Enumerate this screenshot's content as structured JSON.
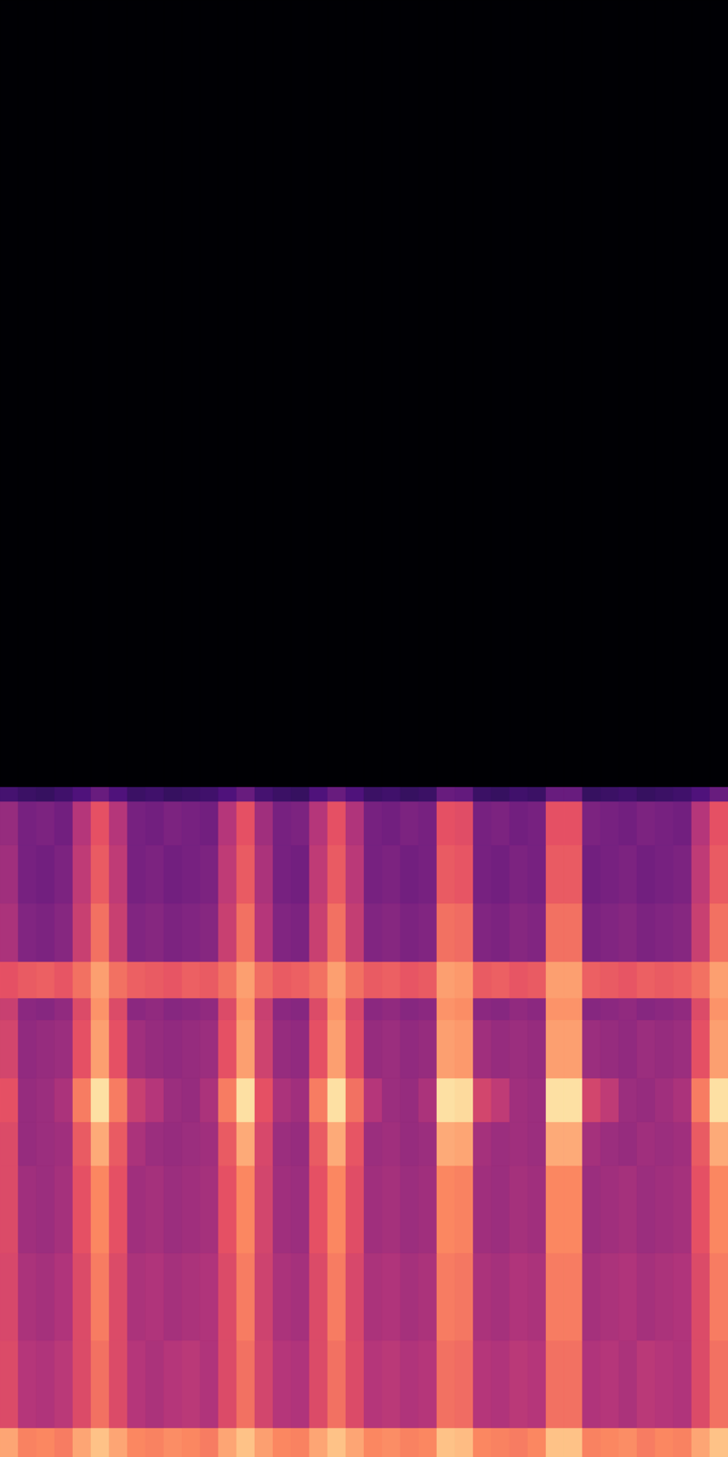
{
  "chart_data": {
    "type": "heatmap",
    "tick_labels": false,
    "xlim": [
      0,
      100
    ],
    "ylim": [
      0,
      100
    ],
    "x_bins": [
      0,
      2.5,
      5,
      7.5,
      10,
      12.5,
      15,
      17.5,
      20,
      22.5,
      25,
      27.5,
      30,
      32.5,
      35,
      37.5,
      40,
      42.5,
      45,
      47.5,
      50,
      52.5,
      55,
      57.5,
      60,
      62.5,
      65,
      67.5,
      70,
      72.5,
      75,
      77.5,
      80,
      82.5,
      85,
      87.5,
      90,
      92.5,
      95,
      97.5,
      100
    ],
    "y_bins": [
      0,
      2,
      8,
      14,
      20,
      23,
      26,
      30,
      31.5,
      34,
      38,
      42,
      45,
      46,
      100
    ],
    "color_range": [
      -80,
      0
    ],
    "cells": [
      [
        -15,
        -21,
        -20,
        -22,
        -15,
        -10,
        -15,
        -20,
        -21,
        -19,
        -20,
        -22,
        -15,
        -10,
        -16,
        -20,
        -21,
        -15,
        -10,
        -15,
        -20,
        -19,
        -21,
        -20,
        -10,
        -11,
        -20,
        -21,
        -22,
        -20,
        -10,
        -10,
        -21,
        -20,
        -19,
        -22,
        -20,
        -21,
        -15,
        -10
      ],
      [
        -32,
        -40,
        -41,
        -39,
        -32,
        -24,
        -32,
        -40,
        -42,
        -40,
        -39,
        -41,
        -32,
        -24,
        -34,
        -40,
        -41,
        -32,
        -24,
        -32,
        -40,
        -39,
        -41,
        -40,
        -24,
        -25,
        -40,
        -41,
        -39,
        -40,
        -24,
        -24,
        -41,
        -40,
        -42,
        -39,
        -40,
        -41,
        -32,
        -24
      ],
      [
        -33,
        -42,
        -43,
        -41,
        -32,
        -22,
        -32,
        -42,
        -41,
        -43,
        -42,
        -41,
        -32,
        -22,
        -35,
        -42,
        -43,
        -32,
        -22,
        -33,
        -42,
        -41,
        -43,
        -42,
        -22,
        -23,
        -42,
        -43,
        -41,
        -42,
        -22,
        -22,
        -43,
        -42,
        -41,
        -43,
        -42,
        -41,
        -32,
        -22
      ],
      [
        -32,
        -44,
        -45,
        -43,
        -30,
        -20,
        -30,
        -44,
        -43,
        -45,
        -44,
        -43,
        -30,
        -20,
        -34,
        -44,
        -45,
        -30,
        -20,
        -31,
        -44,
        -43,
        -45,
        -44,
        -20,
        -21,
        -44,
        -45,
        -43,
        -44,
        -20,
        -20,
        -45,
        -44,
        -43,
        -45,
        -44,
        -43,
        -30,
        -20
      ],
      [
        -32,
        -46,
        -45,
        -44,
        -28,
        -14,
        -28,
        -42,
        -45,
        -46,
        -45,
        -44,
        -28,
        -14,
        -33,
        -45,
        -46,
        -28,
        -14,
        -29,
        -45,
        -44,
        -46,
        -45,
        -14,
        -15,
        -43,
        -45,
        -44,
        -45,
        -14,
        -14,
        -43,
        -45,
        -46,
        -44,
        -45,
        -44,
        -28,
        -14
      ],
      [
        -30,
        -46,
        -45,
        -42,
        -22,
        -5,
        -22,
        -36,
        -40,
        -45,
        -46,
        -42,
        -22,
        -5,
        -30,
        -42,
        -44,
        -22,
        -5,
        -24,
        -40,
        -45,
        -46,
        -42,
        -5,
        -6,
        -34,
        -38,
        -44,
        -45,
        -5,
        -5,
        -34,
        -38,
        -45,
        -46,
        -44,
        -42,
        -22,
        -5
      ],
      [
        -34,
        -47,
        -46,
        -45,
        -30,
        -16,
        -30,
        -44,
        -46,
        -47,
        -46,
        -45,
        -30,
        -16,
        -35,
        -46,
        -47,
        -30,
        -16,
        -31,
        -46,
        -45,
        -47,
        -46,
        -16,
        -17,
        -44,
        -46,
        -45,
        -46,
        -16,
        -16,
        -45,
        -46,
        -47,
        -45,
        -46,
        -45,
        -30,
        -16
      ],
      [
        -36,
        -48,
        -49,
        -47,
        -32,
        -18,
        -32,
        -48,
        -47,
        -49,
        -48,
        -47,
        -32,
        -18,
        -36,
        -48,
        -49,
        -32,
        -18,
        -33,
        -48,
        -47,
        -49,
        -48,
        -18,
        -19,
        -48,
        -49,
        -47,
        -48,
        -18,
        -18,
        -49,
        -48,
        -47,
        -49,
        -48,
        -47,
        -32,
        -18
      ],
      [
        -30,
        -28,
        -27,
        -29,
        -24,
        -16,
        -24,
        -27,
        -28,
        -29,
        -27,
        -28,
        -24,
        -16,
        -25,
        -28,
        -27,
        -24,
        -16,
        -24,
        -28,
        -27,
        -29,
        -28,
        -16,
        -17,
        -28,
        -27,
        -29,
        -28,
        -16,
        -16,
        -27,
        -28,
        -29,
        -27,
        -28,
        -27,
        -24,
        -16
      ],
      [
        -42,
        -50,
        -51,
        -49,
        -36,
        -24,
        -36,
        -50,
        -49,
        -51,
        -50,
        -49,
        -36,
        -24,
        -40,
        -50,
        -51,
        -36,
        -24,
        -37,
        -50,
        -49,
        -51,
        -50,
        -24,
        -25,
        -50,
        -51,
        -49,
        -50,
        -24,
        -24,
        -51,
        -50,
        -49,
        -51,
        -50,
        -49,
        -36,
        -24
      ],
      [
        -44,
        -52,
        -53,
        -51,
        -38,
        -28,
        -38,
        -52,
        -51,
        -53,
        -52,
        -51,
        -38,
        -28,
        -42,
        -52,
        -53,
        -38,
        -28,
        -39,
        -52,
        -51,
        -53,
        -52,
        -28,
        -29,
        -52,
        -53,
        -51,
        -52,
        -28,
        -28,
        -53,
        -52,
        -51,
        -53,
        -52,
        -51,
        -38,
        -28
      ],
      [
        -46,
        -52,
        -51,
        -53,
        -40,
        -30,
        -40,
        -52,
        -53,
        -51,
        -52,
        -53,
        -40,
        -30,
        -44,
        -52,
        -51,
        -40,
        -30,
        -41,
        -52,
        -53,
        -51,
        -52,
        -30,
        -31,
        -52,
        -51,
        -53,
        -52,
        -30,
        -30,
        -51,
        -52,
        -53,
        -51,
        -52,
        -53,
        -40,
        -30
      ],
      [
        -62,
        -64,
        -65,
        -63,
        -60,
        -55,
        -60,
        -64,
        -63,
        -65,
        -64,
        -63,
        -60,
        -55,
        -62,
        -64,
        -65,
        -60,
        -55,
        -60,
        -64,
        -63,
        -65,
        -64,
        -55,
        -56,
        -64,
        -65,
        -63,
        -64,
        -55,
        -55,
        -65,
        -64,
        -63,
        -65,
        -64,
        -63,
        -60,
        -55
      ],
      [
        -80,
        -80,
        -80,
        -80,
        -80,
        -80,
        -80,
        -80,
        -80,
        -80,
        -80,
        -80,
        -80,
        -80,
        -80,
        -80,
        -80,
        -80,
        -80,
        -80,
        -80,
        -80,
        -80,
        -80,
        -80,
        -80,
        -80,
        -80,
        -80,
        -80,
        -80,
        -80,
        -80,
        -80,
        -80,
        -80,
        -80,
        -80,
        -80,
        -80
      ]
    ]
  }
}
